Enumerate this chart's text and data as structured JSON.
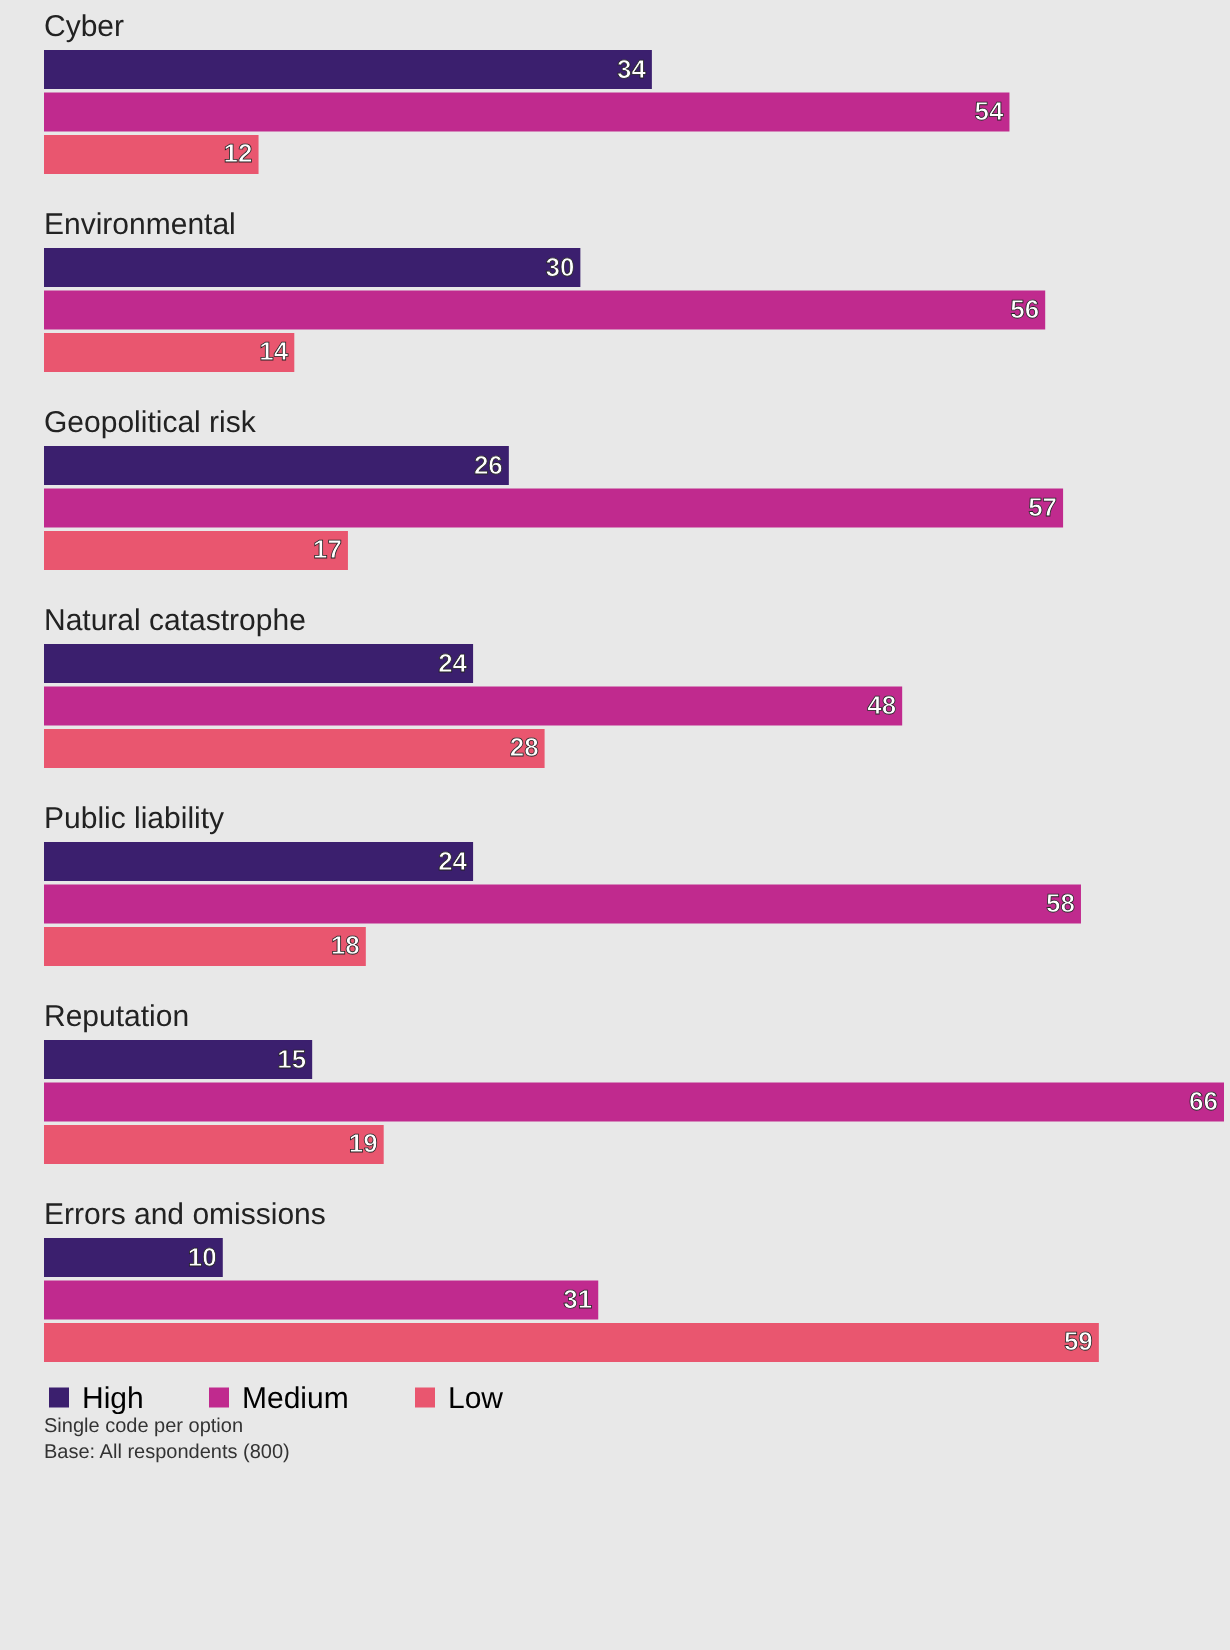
{
  "chart_data": {
    "type": "bar",
    "orientation": "horizontal",
    "data_labels": true,
    "legend": "bottom left",
    "categories": [
      "Cyber",
      "Environmental",
      "Geopolitical risk",
      "Natural catastrophe",
      "Public liability",
      "Reputation",
      "Errors and omissions"
    ],
    "series": [
      {
        "name": "High",
        "color": "#3b1f6e",
        "values": [
          34,
          30,
          26,
          24,
          24,
          15,
          10
        ]
      },
      {
        "name": "Medium",
        "color": "#c02a8e",
        "values": [
          54,
          56,
          57,
          48,
          58,
          66,
          31
        ]
      },
      {
        "name": "Low",
        "color": "#e9566f",
        "values": [
          12,
          14,
          17,
          28,
          18,
          19,
          59
        ]
      }
    ],
    "annotations": [
      "Single code per option",
      "Base: All respondents (800)"
    ]
  }
}
